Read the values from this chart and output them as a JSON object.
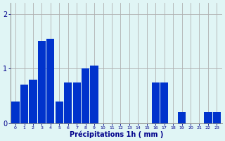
{
  "hours": [
    0,
    1,
    2,
    3,
    4,
    5,
    6,
    7,
    8,
    9,
    10,
    11,
    12,
    13,
    14,
    15,
    16,
    17,
    18,
    19,
    20,
    21,
    22,
    23
  ],
  "values": [
    0.4,
    0.7,
    0.8,
    1.5,
    1.55,
    0.4,
    0.75,
    0.75,
    1.0,
    1.05,
    0.0,
    0.0,
    0.0,
    0.0,
    0.0,
    0.0,
    0.75,
    0.75,
    0.0,
    0.2,
    0.0,
    0.0,
    0.2,
    0.2
  ],
  "bar_color": "#0033cc",
  "background_color": "#e0f5f5",
  "grid_color": "#b0b0b0",
  "xlabel": "Précipitations 1h ( mm )",
  "ylim": [
    0,
    2.2
  ],
  "yticks": [
    0,
    1,
    2
  ],
  "xlabel_color": "#00008b",
  "tick_color": "#00008b"
}
